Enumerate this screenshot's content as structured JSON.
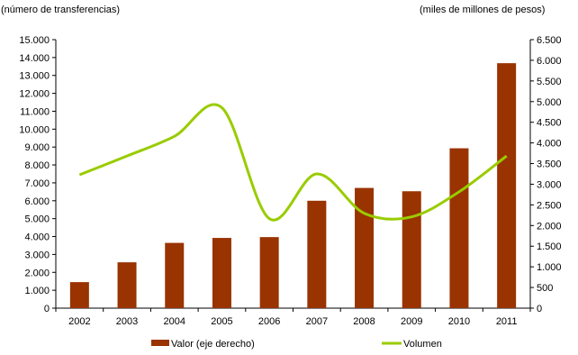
{
  "chart_data": {
    "type": "bar",
    "categories": [
      "2002",
      "2003",
      "2004",
      "2005",
      "2006",
      "2007",
      "2008",
      "2009",
      "2010",
      "2011"
    ],
    "y_left": {
      "label": "(número de transferencias)",
      "ylim": [
        0,
        15000
      ],
      "ticks": [
        "0",
        "1.000",
        "2.000",
        "3.000",
        "4.000",
        "5.000",
        "6.000",
        "7.000",
        "8.000",
        "9.000",
        "10.000",
        "11.000",
        "12.000",
        "13.000",
        "14.000",
        "15.000"
      ],
      "tick_values": [
        0,
        1000,
        2000,
        3000,
        4000,
        5000,
        6000,
        7000,
        8000,
        9000,
        10000,
        11000,
        12000,
        13000,
        14000,
        15000
      ]
    },
    "y_right": {
      "label": "(miles de millones de pesos)",
      "ylim": [
        0,
        6500
      ],
      "ticks": [
        "0",
        "500",
        "1.000",
        "1.500",
        "2.000",
        "2.500",
        "3.000",
        "3.500",
        "4.000",
        "4.500",
        "5.000",
        "5.500",
        "6.000",
        "6.500"
      ],
      "tick_values": [
        0,
        500,
        1000,
        1500,
        2000,
        2500,
        3000,
        3500,
        4000,
        4500,
        5000,
        5500,
        6000,
        6500
      ]
    },
    "series": [
      {
        "name": "Valor (eje derecho)",
        "type": "bar",
        "axis": "right",
        "color": "#993300",
        "values": [
          630,
          1110,
          1580,
          1700,
          1720,
          2600,
          2910,
          2830,
          3870,
          5930
        ]
      },
      {
        "name": "Volumen",
        "type": "line",
        "axis": "left",
        "color": "#99cc00",
        "values": [
          7450,
          8500,
          9600,
          11200,
          5000,
          7500,
          5300,
          5100,
          6500,
          8500
        ]
      }
    ],
    "legend_position": "bottom",
    "grid": false
  }
}
